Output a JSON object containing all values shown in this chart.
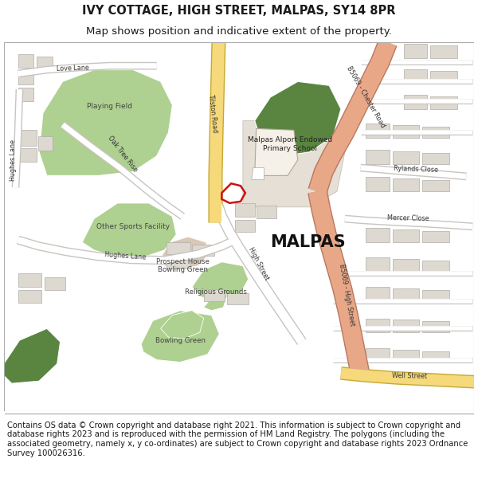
{
  "title_line1": "IVY COTTAGE, HIGH STREET, MALPAS, SY14 8PR",
  "title_line2": "Map shows position and indicative extent of the property.",
  "footer": "Contains OS data © Crown copyright and database right 2021. This information is subject to Crown copyright and database rights 2023 and is reproduced with the permission of HM Land Registry. The polygons (including the associated geometry, namely x, y co-ordinates) are subject to Crown copyright and database rights 2023 Ordnance Survey 100026316.",
  "map_bg": "#f5f3f0",
  "road_yellow_fill": "#f5d97a",
  "road_yellow_edge": "#c8a830",
  "road_salmon_fill": "#e8a888",
  "road_salmon_edge": "#b87860",
  "road_white_fill": "#ffffff",
  "road_white_edge": "#c8c4c0",
  "green_dark": "#5a8540",
  "green_light": "#aed090",
  "building_fill": "#ddd8d0",
  "building_edge": "#b0aca8",
  "school_area_fill": "#e5dfd5",
  "school_bld_fill": "#f5f0e8",
  "plot_color": "#cc1111",
  "text_dark": "#1a1a1a",
  "text_mid": "#444444",
  "text_road": "#333333",
  "border_color": "#aaaaaa",
  "title_fs": 10.5,
  "subtitle_fs": 9.5,
  "footer_fs": 7.2,
  "label_fs": 5.8,
  "area_fs": 6.5
}
